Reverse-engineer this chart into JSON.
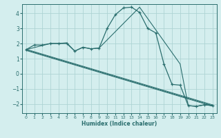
{
  "xlabel": "Humidex (Indice chaleur)",
  "background_color": "#d4eeee",
  "grid_color": "#aed4d4",
  "line_color": "#2a6e6e",
  "xlim": [
    -0.5,
    23.5
  ],
  "ylim": [
    -2.6,
    4.6
  ],
  "xticks": [
    0,
    1,
    2,
    3,
    4,
    5,
    6,
    7,
    8,
    9,
    10,
    11,
    12,
    13,
    14,
    15,
    16,
    17,
    18,
    19,
    20,
    21,
    22,
    23
  ],
  "yticks": [
    -2,
    -1,
    0,
    1,
    2,
    3,
    4
  ],
  "curve1_x": [
    0,
    1,
    2,
    3,
    4,
    5,
    6,
    7,
    8,
    9,
    10,
    11,
    12,
    13,
    14,
    15,
    16,
    17,
    18,
    19,
    20,
    21,
    22,
    23
  ],
  "curve1_y": [
    1.6,
    1.9,
    1.9,
    2.0,
    2.0,
    2.0,
    1.5,
    1.75,
    1.65,
    1.7,
    3.0,
    3.9,
    4.35,
    4.4,
    4.05,
    3.0,
    2.7,
    0.65,
    -0.7,
    -0.75,
    -2.1,
    -2.15,
    -2.05,
    -2.1
  ],
  "curve2_x": [
    0,
    3,
    4,
    5,
    6,
    7,
    8,
    9,
    14,
    19,
    20,
    21,
    22,
    23
  ],
  "curve2_y": [
    1.6,
    2.0,
    2.0,
    2.05,
    1.5,
    1.75,
    1.65,
    1.7,
    4.4,
    0.65,
    -2.1,
    -2.15,
    -2.05,
    -2.1
  ],
  "regression_lines": [
    {
      "x": [
        0,
        23
      ],
      "y": [
        1.62,
        -2.05
      ]
    },
    {
      "x": [
        0,
        23
      ],
      "y": [
        1.58,
        -2.1
      ]
    },
    {
      "x": [
        0,
        23
      ],
      "y": [
        1.54,
        -2.14
      ]
    }
  ]
}
